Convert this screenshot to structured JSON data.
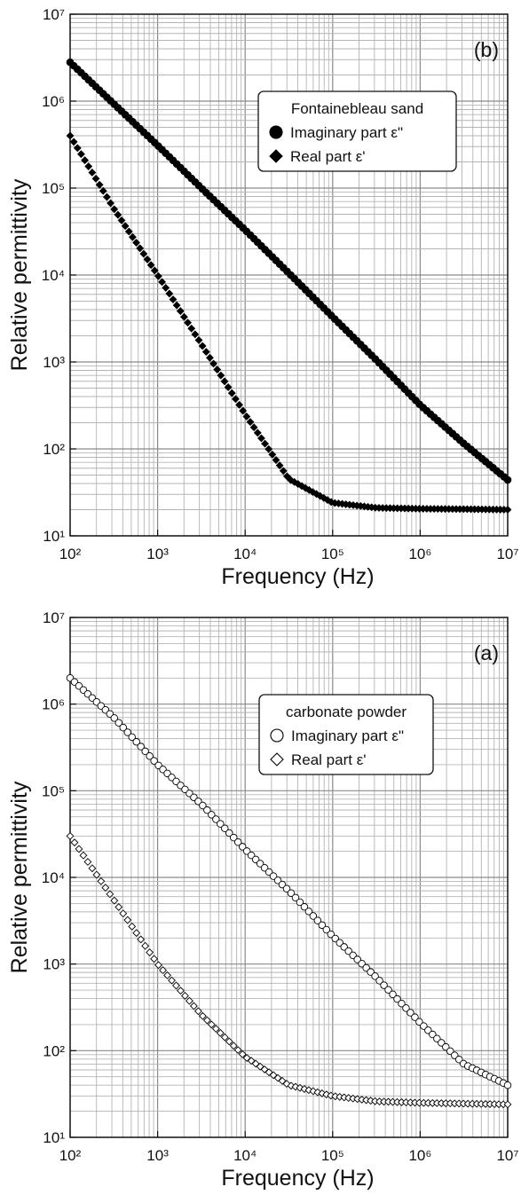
{
  "chart_data": [
    {
      "panel_label": "(b)",
      "type": "scatter",
      "xlabel": "Frequency  (Hz)",
      "ylabel": "Relative permittivity",
      "xscale": "log",
      "yscale": "log",
      "xlim": [
        100,
        10000000
      ],
      "ylim": [
        10,
        10000000
      ],
      "x_ticks": [
        "10²",
        "10³",
        "10⁴",
        "10⁵",
        "10⁶",
        "10⁷"
      ],
      "y_ticks": [
        "10¹",
        "10²",
        "10³",
        "10⁴",
        "10⁵",
        "10⁶",
        "10⁷"
      ],
      "grid": true,
      "legend_position": "top-right",
      "legend_title": "Fontainebleau sand",
      "x": [
        100,
        316,
        1000,
        3162,
        10000,
        31623,
        100000,
        316228,
        1000000,
        3162278,
        10000000
      ],
      "series": [
        {
          "name": "Imaginary part ε\"",
          "marker": "filled-circle",
          "values": [
            2800000,
            930000,
            310000,
            100000,
            33000,
            10500,
            3300,
            1050,
            320,
            115,
            44
          ]
        },
        {
          "name": "Real part ε'",
          "marker": "filled-diamond",
          "values": [
            400000,
            58000,
            10000,
            1600,
            250,
            45,
            24,
            21,
            20.5,
            20.3,
            20
          ]
        }
      ]
    },
    {
      "panel_label": "(a)",
      "type": "scatter",
      "xlabel": "Frequency  (Hz)",
      "ylabel": "Relative permittivity",
      "xscale": "log",
      "yscale": "log",
      "xlim": [
        100,
        10000000
      ],
      "ylim": [
        10,
        10000000
      ],
      "x_ticks": [
        "10²",
        "10³",
        "10⁴",
        "10⁵",
        "10⁶",
        "10⁷"
      ],
      "y_ticks": [
        "10¹",
        "10²",
        "10³",
        "10⁴",
        "10⁵",
        "10⁶",
        "10⁷"
      ],
      "grid": true,
      "legend_position": "top-right",
      "legend_title": "carbonate powder",
      "x": [
        100,
        316,
        1000,
        3162,
        10000,
        31623,
        100000,
        316228,
        1000000,
        3162278,
        10000000
      ],
      "series": [
        {
          "name": "Imaginary part ε\"",
          "marker": "open-circle",
          "values": [
            2000000,
            700000,
            200000,
            70000,
            21000,
            7000,
            2100,
            700,
            210,
            70,
            40
          ]
        },
        {
          "name": "Real part ε'",
          "marker": "open-diamond",
          "values": [
            30000,
            5500,
            1000,
            260,
            85,
            40,
            30,
            26,
            25,
            24.5,
            24
          ]
        }
      ]
    }
  ]
}
